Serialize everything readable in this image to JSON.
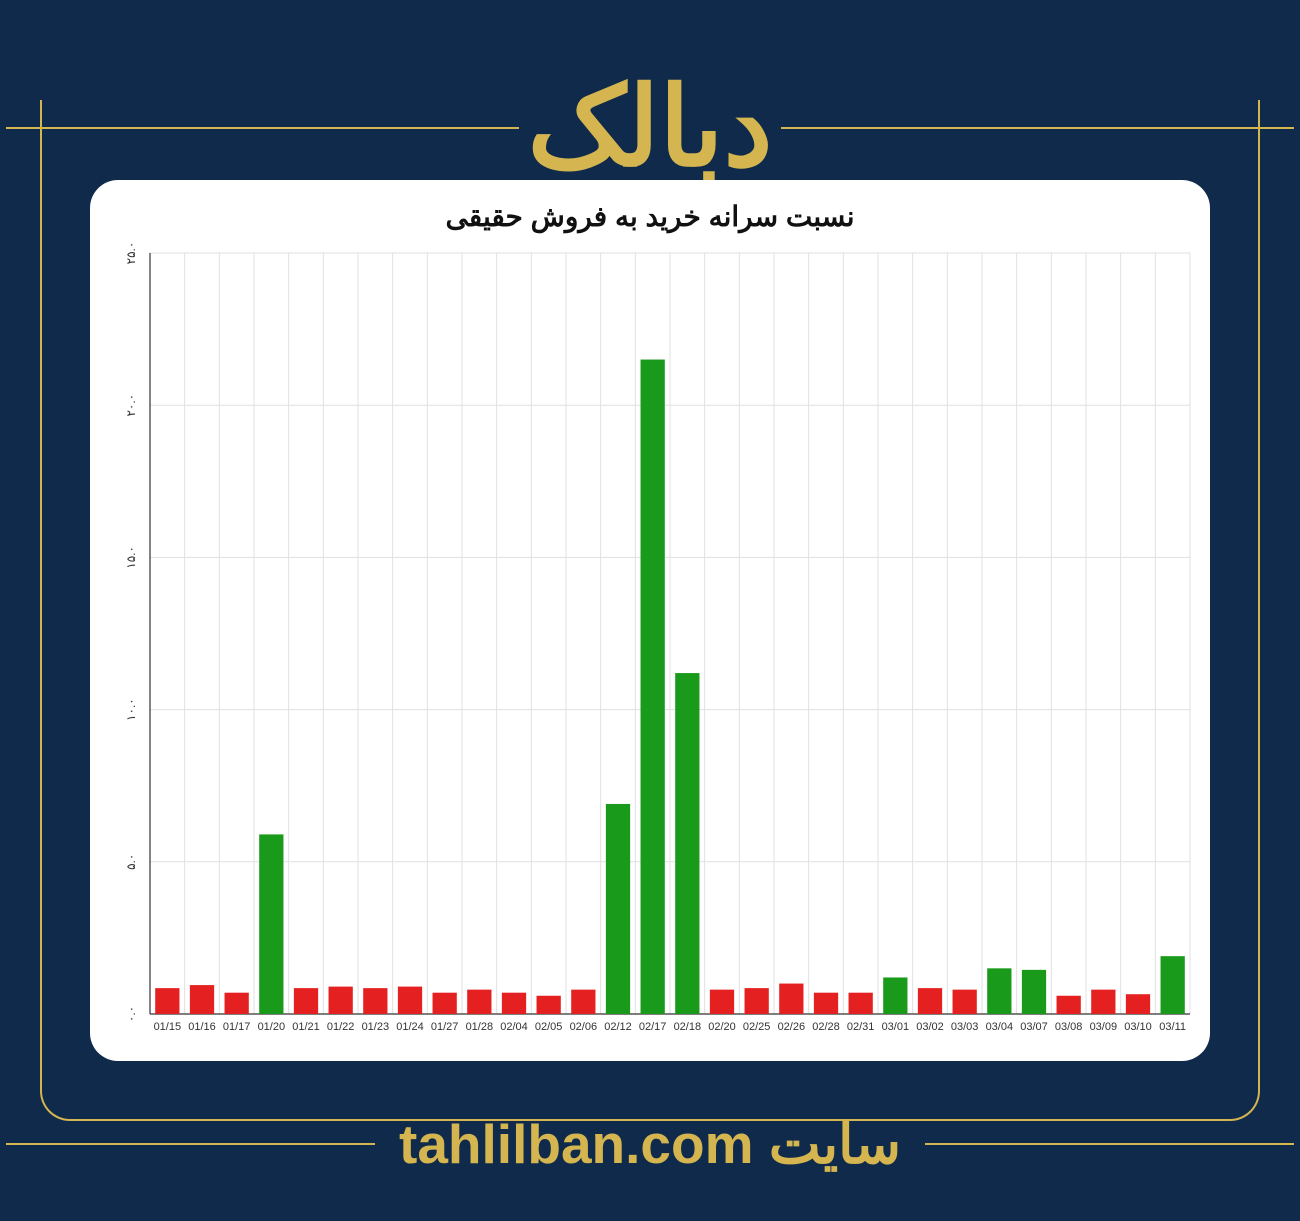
{
  "page": {
    "background_color": "#0f2a4a",
    "accent_color": "#d4b550"
  },
  "header": {
    "title": "دبالک",
    "color": "#d4b550",
    "fontsize": 110
  },
  "footer": {
    "site_word": "سایت",
    "url": "tahlilban.com",
    "color": "#d4b550",
    "fontsize": 55
  },
  "chart": {
    "type": "bar",
    "title": "نسبت سرانه خرید به فروش حقیقی",
    "title_fontsize": 28,
    "title_color": "#111111",
    "background_color": "#ffffff",
    "grid_color": "#e0e0e0",
    "axis_color": "#333333",
    "ylim": [
      0,
      25
    ],
    "yticks": [
      0,
      5,
      10,
      15,
      20,
      25
    ],
    "ytick_labels": [
      "۰.۰",
      "۵.۰",
      "۱۰.۰",
      "۱۵.۰",
      "۲۰.۰",
      "۲۵.۰"
    ],
    "tick_fontsize": 12,
    "xlabel_fontsize": 11,
    "xlabel_color": "#333333",
    "bar_width": 0.7,
    "colors": {
      "positive": "#1a9a1a",
      "negative": "#e52020"
    },
    "categories": [
      "01/15",
      "01/16",
      "01/17",
      "01/20",
      "01/21",
      "01/22",
      "01/23",
      "01/24",
      "01/27",
      "01/28",
      "02/04",
      "02/05",
      "02/06",
      "02/12",
      "02/17",
      "02/18",
      "02/20",
      "02/25",
      "02/26",
      "02/28",
      "02/31",
      "03/01",
      "03/02",
      "03/03",
      "03/04",
      "03/07",
      "03/08",
      "03/09",
      "03/10",
      "03/11"
    ],
    "values": [
      0.85,
      0.95,
      0.7,
      5.9,
      0.85,
      0.9,
      0.85,
      0.9,
      0.7,
      0.8,
      0.7,
      0.6,
      0.8,
      6.9,
      21.5,
      11.2,
      0.8,
      0.85,
      1.0,
      0.7,
      0.7,
      1.2,
      0.85,
      0.8,
      1.5,
      1.45,
      0.6,
      0.8,
      0.65,
      1.9
    ],
    "bar_positive": [
      false,
      false,
      false,
      true,
      false,
      false,
      false,
      false,
      false,
      false,
      false,
      false,
      false,
      true,
      true,
      true,
      false,
      false,
      false,
      false,
      false,
      true,
      false,
      false,
      true,
      true,
      false,
      false,
      false,
      true
    ]
  }
}
